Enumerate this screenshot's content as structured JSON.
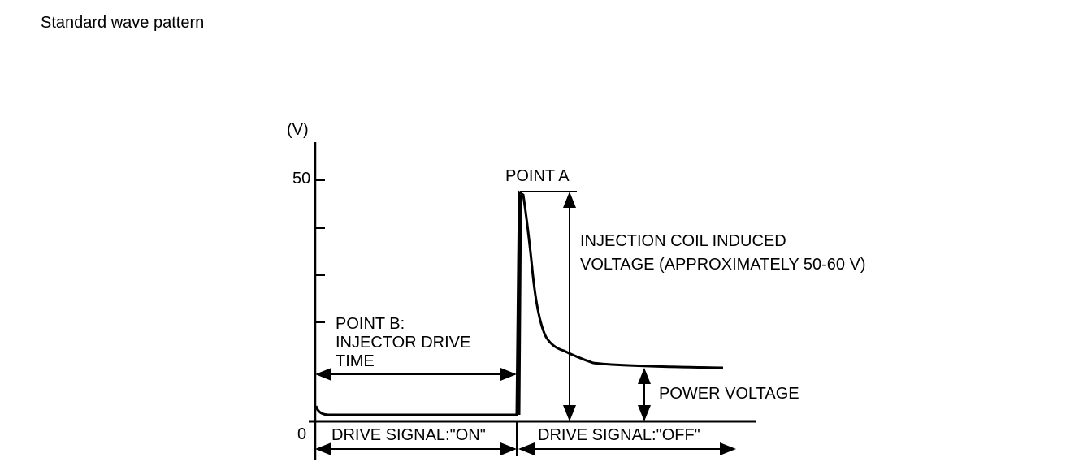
{
  "header": {
    "title": "Standard wave pattern"
  },
  "diagram": {
    "axis_unit": "(V)",
    "axis_labels": [
      "50",
      "0"
    ],
    "point_a": "POINT A",
    "induced_voltage": [
      "INJECTION COIL INDUCED",
      "VOLTAGE (APPROXIMATELY 50-60 V)"
    ],
    "point_b": [
      "POINT B:",
      "INJECTOR DRIVE",
      "TIME"
    ],
    "power_voltage": "POWER VOLTAGE",
    "drive_on": "DRIVE SIGNAL:\"ON\"",
    "drive_off": "DRIVE SIGNAL:\"OFF\""
  }
}
